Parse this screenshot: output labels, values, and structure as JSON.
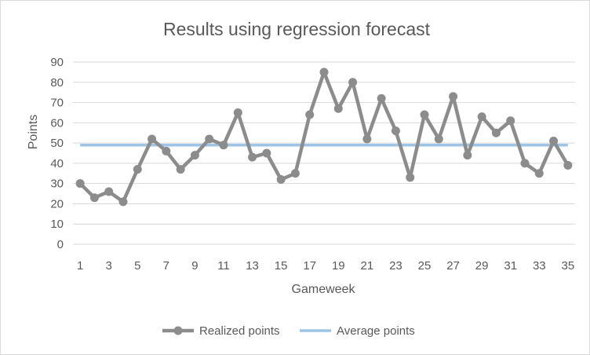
{
  "chart_data": {
    "type": "line",
    "title": "Results using regression forecast",
    "xlabel": "Gameweek",
    "ylabel": "Points",
    "ylim": [
      0,
      90
    ],
    "ytick_step": 10,
    "x": [
      1,
      2,
      3,
      4,
      5,
      6,
      7,
      8,
      9,
      10,
      11,
      12,
      13,
      14,
      15,
      16,
      17,
      18,
      19,
      20,
      21,
      22,
      23,
      24,
      25,
      26,
      27,
      28,
      29,
      30,
      31,
      32,
      33,
      34,
      35
    ],
    "xtick_labels": [
      "1",
      "3",
      "5",
      "7",
      "9",
      "11",
      "13",
      "15",
      "17",
      "19",
      "21",
      "23",
      "25",
      "27",
      "29",
      "31",
      "33",
      "35"
    ],
    "grid": true,
    "legend_position": "bottom",
    "series": [
      {
        "name": "Realized points",
        "color": "#8c8c8c",
        "marker": "circle",
        "values": [
          30,
          23,
          26,
          21,
          37,
          52,
          46,
          37,
          44,
          52,
          49,
          65,
          43,
          45,
          32,
          35,
          64,
          85,
          67,
          80,
          52,
          72,
          56,
          33,
          64,
          52,
          73,
          44,
          63,
          55,
          61,
          40,
          35,
          51,
          39
        ]
      },
      {
        "name": "Average points",
        "color": "#9dc3e6",
        "marker": "none",
        "values": [
          49,
          49,
          49,
          49,
          49,
          49,
          49,
          49,
          49,
          49,
          49,
          49,
          49,
          49,
          49,
          49,
          49,
          49,
          49,
          49,
          49,
          49,
          49,
          49,
          49,
          49,
          49,
          49,
          49,
          49,
          49,
          49,
          49,
          49,
          49
        ]
      }
    ]
  }
}
